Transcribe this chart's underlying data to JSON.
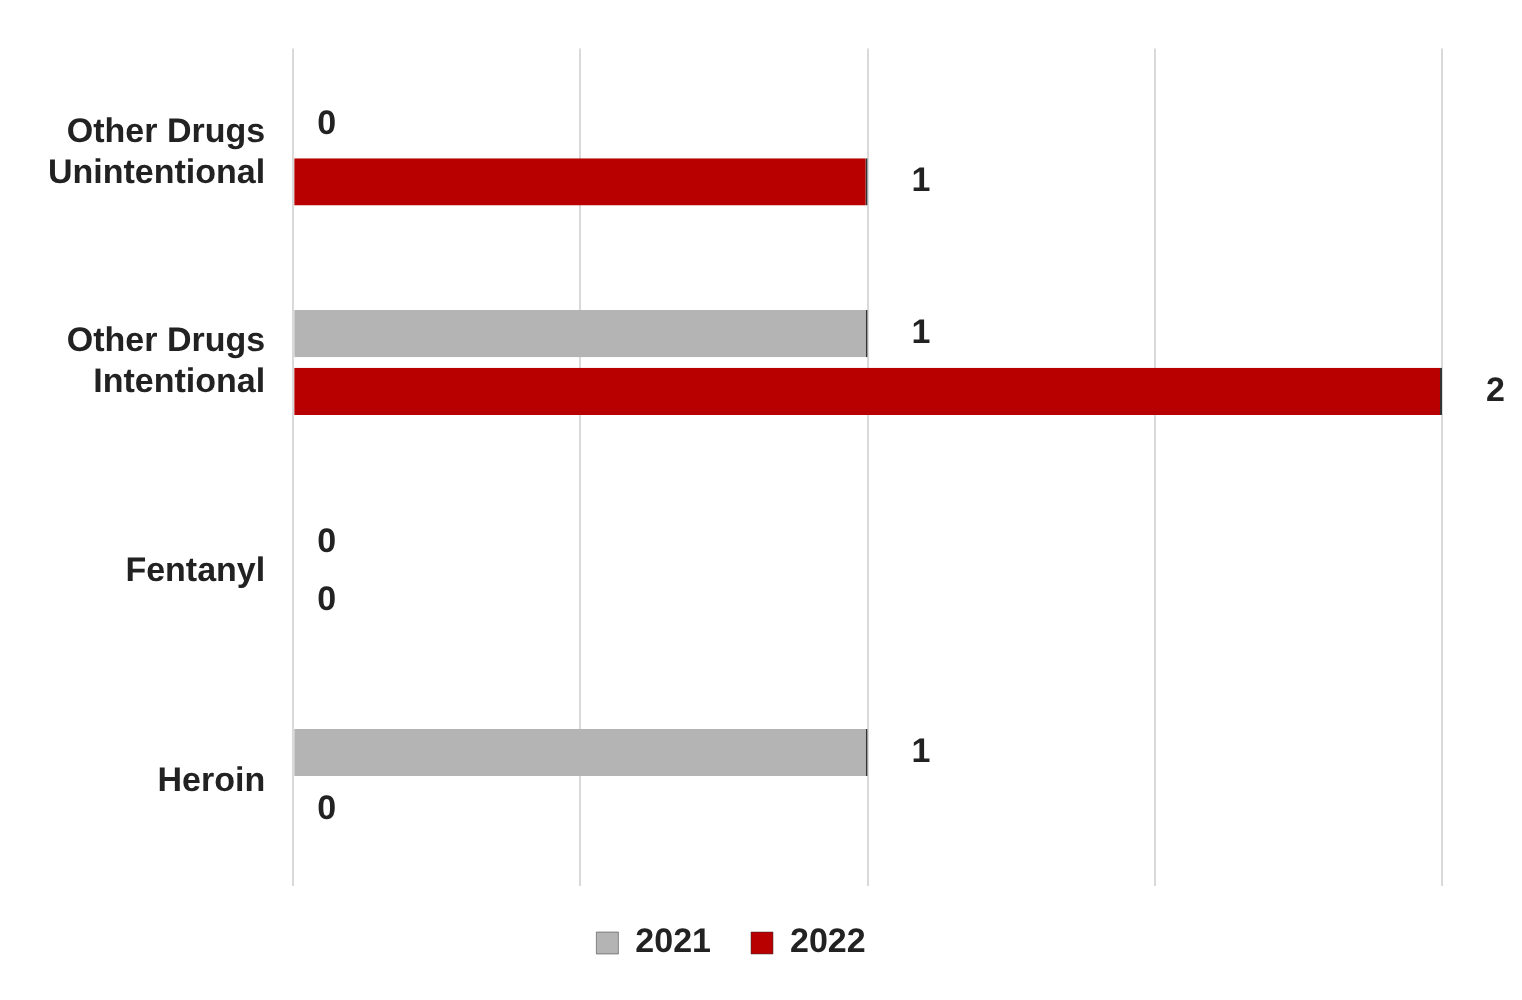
{
  "chart_data": {
    "type": "bar",
    "orientation": "horizontal",
    "categories": [
      "Other Drugs Unintentional",
      "Other Drugs Intentional",
      "Fentanyl",
      "Heroin"
    ],
    "series": [
      {
        "name": "2021",
        "color": "#b4b4b4",
        "values": [
          0,
          1,
          0,
          1
        ]
      },
      {
        "name": "2022",
        "color": "#b80000",
        "values": [
          1,
          2,
          0,
          0
        ]
      }
    ],
    "xlim": [
      0,
      2
    ],
    "tick_labels": "y",
    "grid": "x",
    "legend": "bottom",
    "data_labels": true
  }
}
